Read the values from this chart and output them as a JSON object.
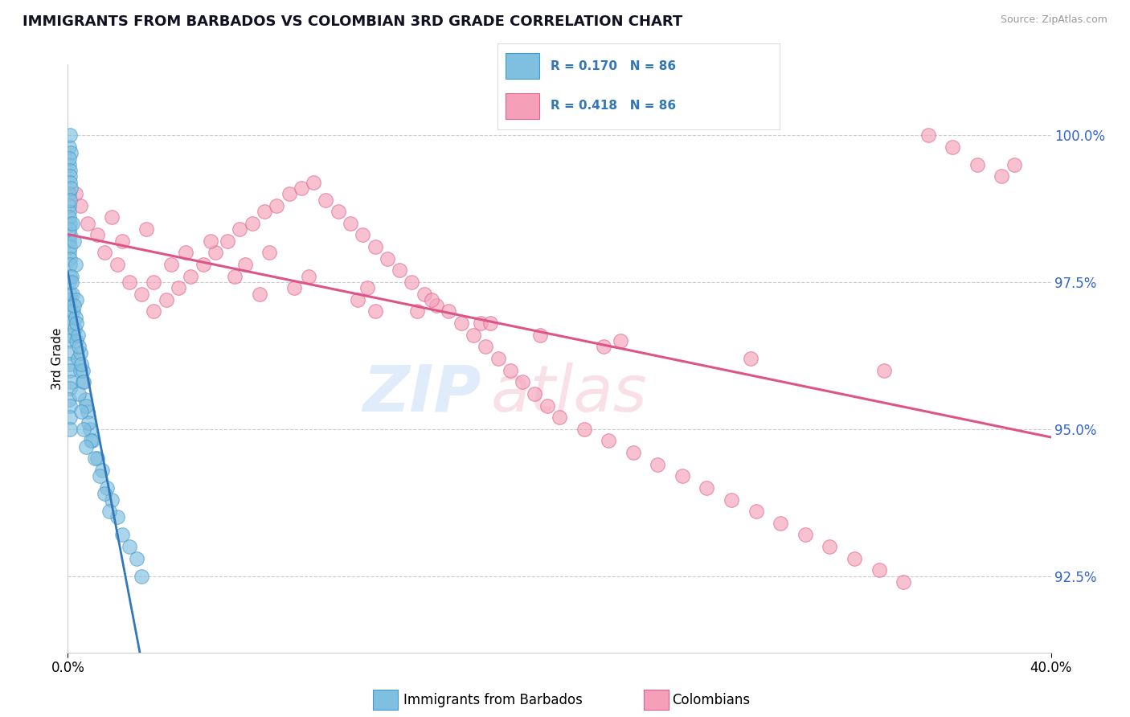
{
  "title": "IMMIGRANTS FROM BARBADOS VS COLOMBIAN 3RD GRADE CORRELATION CHART",
  "source": "Source: ZipAtlas.com",
  "ylabel_label": "3rd Grade",
  "x_min": 0.0,
  "x_max": 40.0,
  "y_min": 91.2,
  "y_max": 101.2,
  "ytick_labels": [
    "92.5%",
    "95.0%",
    "97.5%",
    "100.0%"
  ],
  "ytick_values": [
    92.5,
    95.0,
    97.5,
    100.0
  ],
  "blue_color": "#7fbfdf",
  "blue_edge_color": "#4499cc",
  "pink_color": "#f5a0b8",
  "pink_edge_color": "#e06090",
  "blue_line_color": "#3377bb",
  "pink_line_color": "#dd5588",
  "title_fontsize": 13,
  "axis_label_color": "#3366cc",
  "watermark_zip_color": "#ccddeeff",
  "watermark_atlas_color": "#f5c0d0ff",
  "legend_r1": "R = 0.170",
  "legend_n1": "N = 86",
  "legend_r2": "R = 0.418",
  "legend_n2": "N = 86",
  "blue_x": [
    0.05,
    0.08,
    0.12,
    0.05,
    0.06,
    0.07,
    0.1,
    0.08,
    0.05,
    0.06,
    0.05,
    0.07,
    0.09,
    0.06,
    0.05,
    0.12,
    0.08,
    0.06,
    0.05,
    0.07,
    0.1,
    0.08,
    0.09,
    0.06,
    0.07,
    0.06,
    0.08,
    0.05,
    0.07,
    0.09,
    0.06,
    0.08,
    0.05,
    0.1,
    0.12,
    0.07,
    0.06,
    0.08,
    0.09,
    0.1,
    0.2,
    0.25,
    0.3,
    0.15,
    0.18,
    0.22,
    0.28,
    0.35,
    0.4,
    0.5,
    0.6,
    0.7,
    0.8,
    0.9,
    1.0,
    1.2,
    1.4,
    1.6,
    1.8,
    2.0,
    2.5,
    0.35,
    0.3,
    0.4,
    0.5,
    0.6,
    0.15,
    0.25,
    0.35,
    0.45,
    0.55,
    0.65,
    0.75,
    0.85,
    0.95,
    1.1,
    1.3,
    1.5,
    1.7,
    2.2,
    2.8,
    3.0,
    0.45,
    0.55,
    0.65,
    0.75
  ],
  "blue_y": [
    99.8,
    100.0,
    99.7,
    99.5,
    99.6,
    99.4,
    99.3,
    99.2,
    99.0,
    98.8,
    98.7,
    98.5,
    98.3,
    98.2,
    98.0,
    99.1,
    98.9,
    98.6,
    98.4,
    98.1,
    97.9,
    97.8,
    97.6,
    97.5,
    97.3,
    97.2,
    97.0,
    96.9,
    96.8,
    96.6,
    96.5,
    96.3,
    96.1,
    96.0,
    95.8,
    95.7,
    95.5,
    95.4,
    95.2,
    95.0,
    98.5,
    98.2,
    97.8,
    97.6,
    97.3,
    97.0,
    96.7,
    96.5,
    96.2,
    96.0,
    95.8,
    95.5,
    95.3,
    95.0,
    94.8,
    94.5,
    94.3,
    94.0,
    93.8,
    93.5,
    93.0,
    97.2,
    96.9,
    96.6,
    96.3,
    96.0,
    97.5,
    97.1,
    96.8,
    96.4,
    96.1,
    95.8,
    95.4,
    95.1,
    94.8,
    94.5,
    94.2,
    93.9,
    93.6,
    93.2,
    92.8,
    92.5,
    95.6,
    95.3,
    95.0,
    94.7
  ],
  "pink_x": [
    0.3,
    0.5,
    0.8,
    1.2,
    1.5,
    2.0,
    2.5,
    3.0,
    3.5,
    4.0,
    4.5,
    5.0,
    5.5,
    6.0,
    6.5,
    7.0,
    7.5,
    8.0,
    8.5,
    9.0,
    9.5,
    10.0,
    10.5,
    11.0,
    11.5,
    12.0,
    12.5,
    13.0,
    13.5,
    14.0,
    14.5,
    15.0,
    15.5,
    16.0,
    16.5,
    17.0,
    17.5,
    18.0,
    18.5,
    19.0,
    19.5,
    20.0,
    21.0,
    22.0,
    23.0,
    24.0,
    25.0,
    26.0,
    27.0,
    28.0,
    29.0,
    30.0,
    31.0,
    32.0,
    33.0,
    34.0,
    35.0,
    36.0,
    37.0,
    38.0,
    4.2,
    6.8,
    9.2,
    11.8,
    14.2,
    16.8,
    19.2,
    21.8,
    2.2,
    4.8,
    7.2,
    9.8,
    12.2,
    14.8,
    3.5,
    7.8,
    12.5,
    17.2,
    22.5,
    27.8,
    33.2,
    38.5,
    1.8,
    3.2,
    5.8,
    8.2
  ],
  "pink_y": [
    99.0,
    98.8,
    98.5,
    98.3,
    98.0,
    97.8,
    97.5,
    97.3,
    97.0,
    97.2,
    97.4,
    97.6,
    97.8,
    98.0,
    98.2,
    98.4,
    98.5,
    98.7,
    98.8,
    99.0,
    99.1,
    99.2,
    98.9,
    98.7,
    98.5,
    98.3,
    98.1,
    97.9,
    97.7,
    97.5,
    97.3,
    97.1,
    97.0,
    96.8,
    96.6,
    96.4,
    96.2,
    96.0,
    95.8,
    95.6,
    95.4,
    95.2,
    95.0,
    94.8,
    94.6,
    94.4,
    94.2,
    94.0,
    93.8,
    93.6,
    93.4,
    93.2,
    93.0,
    92.8,
    92.6,
    92.4,
    100.0,
    99.8,
    99.5,
    99.3,
    97.8,
    97.6,
    97.4,
    97.2,
    97.0,
    96.8,
    96.6,
    96.4,
    98.2,
    98.0,
    97.8,
    97.6,
    97.4,
    97.2,
    97.5,
    97.3,
    97.0,
    96.8,
    96.5,
    96.2,
    96.0,
    99.5,
    98.6,
    98.4,
    98.2,
    98.0
  ]
}
